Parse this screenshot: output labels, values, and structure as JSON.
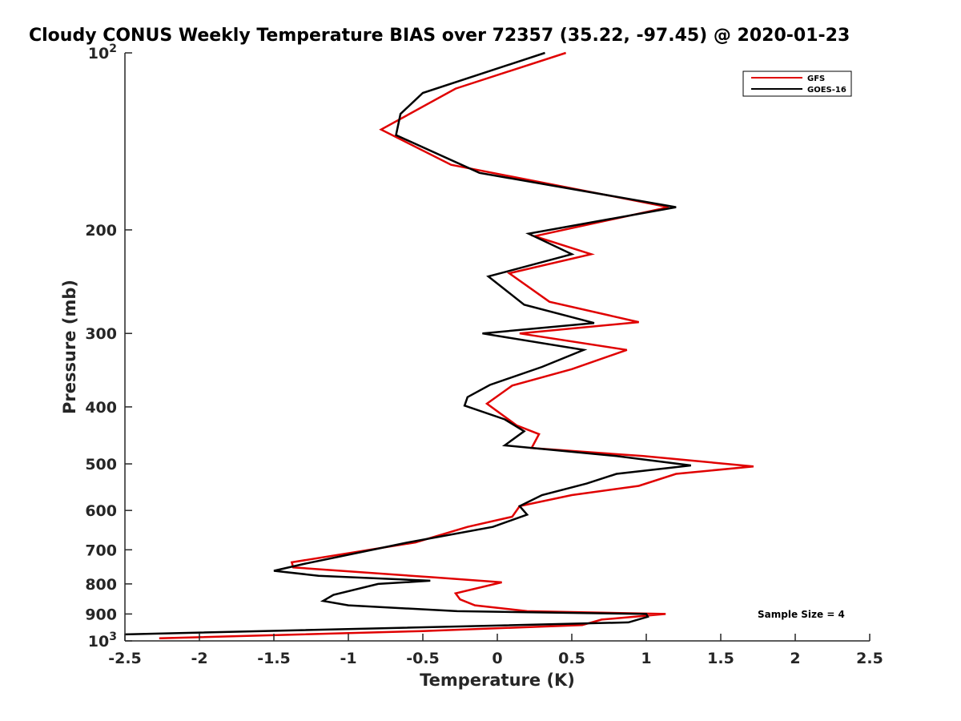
{
  "chart_data": {
    "type": "line",
    "title": "Cloudy CONUS Weekly Temperature BIAS over 72357 (35.22, -97.45) @ 2020-01-23",
    "xlabel": "Temperature (K)",
    "ylabel": "Pressure (mb)",
    "xlim": [
      -2.5,
      2.5
    ],
    "ylim": [
      100,
      1000
    ],
    "y_scale": "log",
    "y_reversed": true,
    "grid": false,
    "legend_position": "top-right",
    "x_ticks": [
      "-2.5",
      "-2",
      "-1.5",
      "-1",
      "-0.5",
      "0",
      "0.5",
      "1",
      "1.5",
      "2",
      "2.5"
    ],
    "x_tick_values": [
      -2.5,
      -2,
      -1.5,
      -1,
      -0.5,
      0,
      0.5,
      1,
      1.5,
      2,
      2.5
    ],
    "y_ticks": [
      {
        "value": 100,
        "base": "10",
        "exp": "2"
      },
      {
        "value": 200,
        "label": "200"
      },
      {
        "value": 300,
        "label": "300"
      },
      {
        "value": 400,
        "label": "400"
      },
      {
        "value": 500,
        "label": "500"
      },
      {
        "value": 600,
        "label": "600"
      },
      {
        "value": 700,
        "label": "700"
      },
      {
        "value": 800,
        "label": "800"
      },
      {
        "value": 900,
        "label": "900"
      },
      {
        "value": 1000,
        "base": "10",
        "exp": "3"
      }
    ],
    "series": [
      {
        "name": "GFS",
        "color": "#e00000",
        "points": [
          [
            0.46,
            100
          ],
          [
            -0.28,
            115
          ],
          [
            -0.78,
            135
          ],
          [
            -0.31,
            155
          ],
          [
            1.15,
            183
          ],
          [
            0.25,
            205
          ],
          [
            0.63,
            220
          ],
          [
            0.08,
            237
          ],
          [
            0.35,
            265
          ],
          [
            0.95,
            287
          ],
          [
            0.15,
            300
          ],
          [
            0.87,
            320
          ],
          [
            0.5,
            345
          ],
          [
            0.1,
            368
          ],
          [
            -0.07,
            395
          ],
          [
            0.13,
            430
          ],
          [
            0.28,
            445
          ],
          [
            0.23,
            470
          ],
          [
            0.98,
            485
          ],
          [
            1.72,
            505
          ],
          [
            1.2,
            520
          ],
          [
            0.95,
            545
          ],
          [
            0.5,
            565
          ],
          [
            0.15,
            590
          ],
          [
            0.1,
            615
          ],
          [
            -0.2,
            640
          ],
          [
            -0.55,
            680
          ],
          [
            -1.38,
            735
          ],
          [
            -1.37,
            750
          ],
          [
            -0.42,
            780
          ],
          [
            0.03,
            795
          ],
          [
            -0.28,
            830
          ],
          [
            -0.25,
            850
          ],
          [
            -0.15,
            870
          ],
          [
            0.2,
            890
          ],
          [
            1.13,
            900
          ],
          [
            0.7,
            920
          ],
          [
            0.57,
            940
          ],
          [
            -0.5,
            962
          ],
          [
            -2.27,
            990
          ]
        ]
      },
      {
        "name": "GOES-16",
        "color": "#000000",
        "points": [
          [
            0.32,
            100
          ],
          [
            -0.5,
            117
          ],
          [
            -0.65,
            127
          ],
          [
            -0.68,
            138
          ],
          [
            -0.12,
            160
          ],
          [
            1.2,
            183
          ],
          [
            0.21,
            203
          ],
          [
            0.5,
            220
          ],
          [
            -0.06,
            240
          ],
          [
            0.18,
            268
          ],
          [
            0.65,
            288
          ],
          [
            -0.1,
            300
          ],
          [
            0.58,
            320
          ],
          [
            0.3,
            342
          ],
          [
            -0.05,
            367
          ],
          [
            -0.2,
            385
          ],
          [
            -0.22,
            398
          ],
          [
            0.05,
            420
          ],
          [
            0.18,
            440
          ],
          [
            0.05,
            465
          ],
          [
            0.8,
            485
          ],
          [
            1.3,
            503
          ],
          [
            0.8,
            520
          ],
          [
            0.6,
            540
          ],
          [
            0.3,
            565
          ],
          [
            0.15,
            590
          ],
          [
            0.2,
            610
          ],
          [
            -0.03,
            640
          ],
          [
            -0.6,
            680
          ],
          [
            -1.3,
            740
          ],
          [
            -1.5,
            760
          ],
          [
            -1.2,
            775
          ],
          [
            -0.45,
            790
          ],
          [
            -0.8,
            800
          ],
          [
            -1.1,
            835
          ],
          [
            -1.17,
            855
          ],
          [
            -1.0,
            870
          ],
          [
            -0.27,
            890
          ],
          [
            1.0,
            900
          ],
          [
            1.01,
            910
          ],
          [
            0.88,
            930
          ],
          [
            -2.5,
            975
          ]
        ]
      }
    ],
    "annotations": [
      "Sample Size = 4"
    ]
  }
}
